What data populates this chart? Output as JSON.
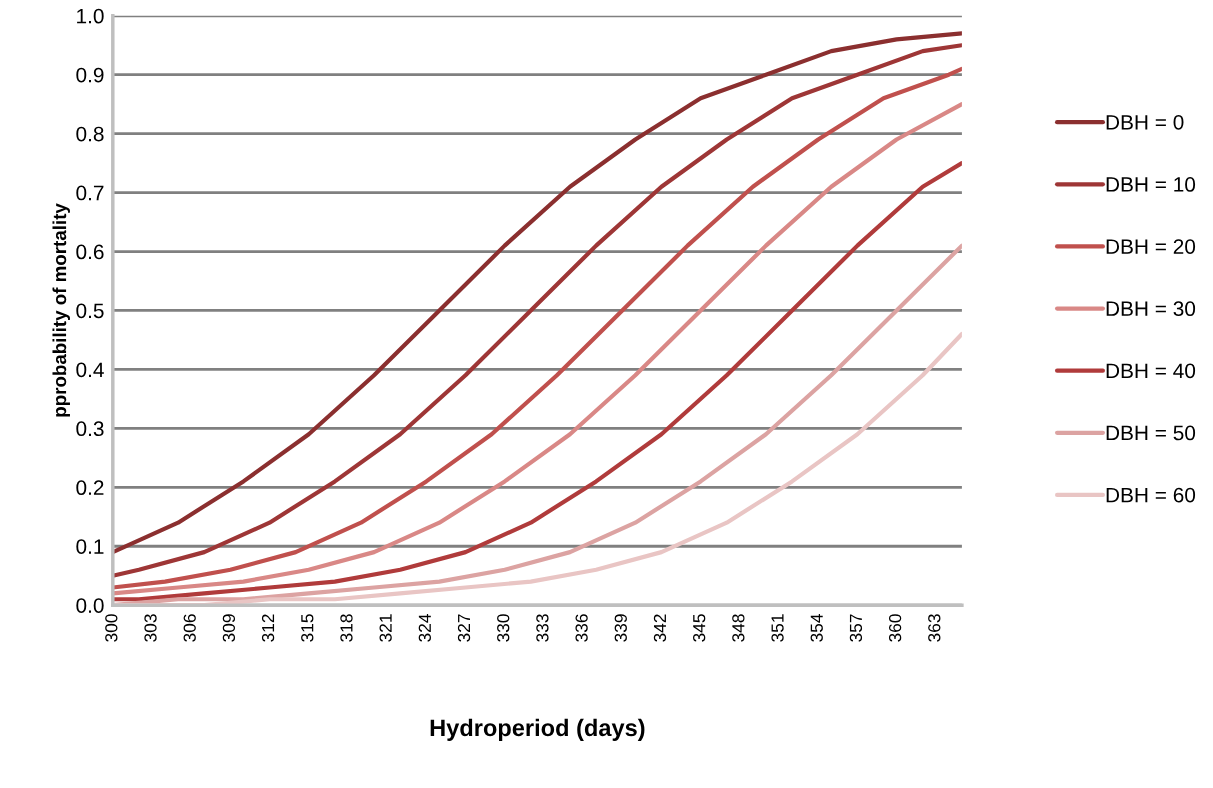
{
  "chart_data": {
    "type": "line",
    "xlabel": "Hydroperiod (days)",
    "ylabel": "pprobability of mortality",
    "xlim": [
      300,
      365
    ],
    "xticks": [
      300,
      303,
      306,
      309,
      312,
      315,
      318,
      321,
      324,
      327,
      330,
      333,
      336,
      339,
      342,
      345,
      348,
      351,
      354,
      357,
      360,
      363
    ],
    "ylim": [
      0,
      1
    ],
    "yticks": [
      {
        "value": 0,
        "label": "0.0"
      },
      0.1,
      0.2,
      0.3,
      0.4,
      0.5,
      0.6,
      0.7,
      0.8,
      0.9,
      {
        "value": 1,
        "label": "1.0"
      }
    ],
    "grid": "y",
    "legend": "right",
    "marker": "none",
    "line_style": "solid",
    "series": [
      {
        "name": "DBH = 0",
        "color": "#8b2f2f",
        "x": [
          300,
          305,
          310,
          315,
          320,
          325,
          330,
          335,
          340,
          345,
          350,
          355,
          360,
          365
        ],
        "values": [
          0.09,
          0.14,
          0.21,
          0.29,
          0.39,
          0.5,
          0.61,
          0.71,
          0.79,
          0.86,
          0.9,
          0.94,
          0.96,
          0.97
        ]
      },
      {
        "name": "DBH = 10",
        "color": "#9e3636",
        "x": [
          300,
          302,
          307,
          312,
          317,
          322,
          327,
          332,
          337,
          342,
          347,
          352,
          357,
          362,
          365
        ],
        "values": [
          0.05,
          0.06,
          0.09,
          0.14,
          0.21,
          0.29,
          0.39,
          0.5,
          0.61,
          0.71,
          0.79,
          0.86,
          0.9,
          0.94,
          0.95
        ]
      },
      {
        "name": "DBH = 20",
        "color": "#c0504d",
        "x": [
          300,
          304,
          309,
          314,
          319,
          324,
          329,
          334,
          339,
          344,
          349,
          354,
          359,
          364,
          365
        ],
        "values": [
          0.03,
          0.04,
          0.06,
          0.09,
          0.14,
          0.21,
          0.29,
          0.39,
          0.5,
          0.61,
          0.71,
          0.79,
          0.86,
          0.9,
          0.91
        ]
      },
      {
        "name": "DBH = 30",
        "color": "#d98886",
        "x": [
          300,
          305,
          310,
          315,
          320,
          325,
          330,
          335,
          340,
          345,
          350,
          355,
          360,
          365
        ],
        "values": [
          0.02,
          0.03,
          0.04,
          0.06,
          0.09,
          0.14,
          0.21,
          0.29,
          0.39,
          0.5,
          0.61,
          0.71,
          0.79,
          0.85
        ]
      },
      {
        "name": "DBH = 40",
        "color": "#b03b3b",
        "x": [
          300,
          302,
          307,
          312,
          317,
          322,
          327,
          332,
          337,
          342,
          347,
          352,
          357,
          362,
          365
        ],
        "values": [
          0.01,
          0.01,
          0.02,
          0.03,
          0.04,
          0.06,
          0.09,
          0.14,
          0.21,
          0.29,
          0.39,
          0.5,
          0.61,
          0.71,
          0.75
        ]
      },
      {
        "name": "DBH = 50",
        "color": "#dca3a2",
        "x": [
          300,
          305,
          310,
          315,
          320,
          325,
          330,
          335,
          340,
          345,
          350,
          355,
          360,
          365
        ],
        "values": [
          0.0,
          0.01,
          0.01,
          0.02,
          0.03,
          0.04,
          0.06,
          0.09,
          0.14,
          0.21,
          0.29,
          0.39,
          0.5,
          0.61
        ]
      },
      {
        "name": "DBH = 60",
        "color": "#e9c5c4",
        "x": [
          300,
          302,
          307,
          312,
          317,
          322,
          327,
          332,
          337,
          342,
          347,
          352,
          357,
          362,
          365
        ],
        "values": [
          0.0,
          0.0,
          0.0,
          0.01,
          0.01,
          0.02,
          0.03,
          0.04,
          0.06,
          0.09,
          0.14,
          0.21,
          0.29,
          0.39,
          0.46
        ]
      }
    ]
  }
}
